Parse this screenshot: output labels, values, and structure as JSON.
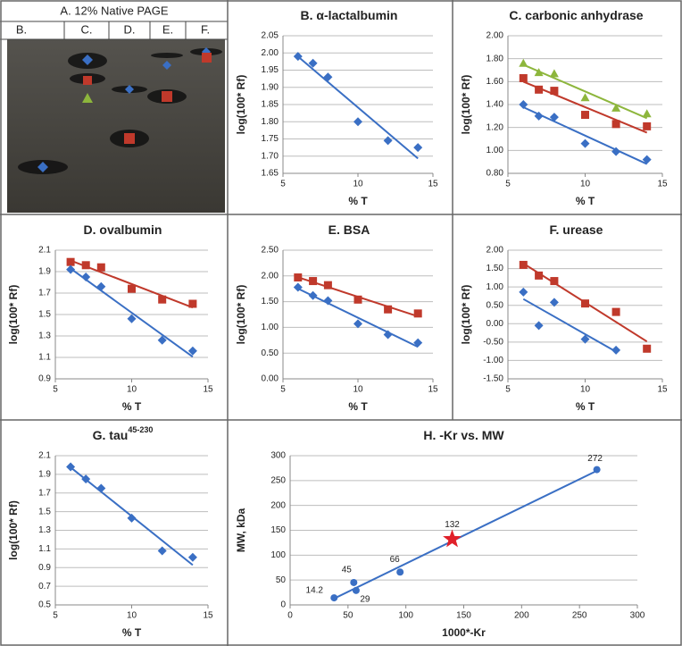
{
  "gel": {
    "title": "A.   12% Native PAGE",
    "lanes": [
      "B.",
      "C.",
      "D.",
      "E.",
      "F."
    ]
  },
  "chart_data": [
    {
      "type": "scatter",
      "title": "B. α-lactalbumin",
      "x_label": "% T",
      "y_label": "log(100* Rf)",
      "xlim": [
        5,
        15
      ],
      "xticks": [
        5,
        10,
        15
      ],
      "ylim": [
        1.65,
        2.05
      ],
      "yticks": [
        1.65,
        {
          "value": 1.7,
          "label": "1.70"
        },
        1.75,
        {
          "value": 1.8,
          "label": "1.80"
        },
        1.85,
        {
          "value": 1.9,
          "label": "1.90"
        },
        1.95,
        {
          "value": 2,
          "label": "2.00"
        },
        2.05
      ],
      "grid": true,
      "series": [
        {
          "color": "#3a6fc4",
          "marker": "diamond",
          "trendline": true,
          "x": [
            6,
            7,
            8,
            10,
            12,
            14
          ],
          "values": [
            1.99,
            1.97,
            1.93,
            1.8,
            1.745,
            1.725
          ]
        }
      ]
    },
    {
      "type": "scatter",
      "title": "C. carbonic anhydrase",
      "x_label": "% T",
      "y_label": "log(100* Rf)",
      "xlim": [
        5,
        15
      ],
      "xticks": [
        5,
        10,
        15
      ],
      "ylim": [
        0.8,
        2
      ],
      "yticks": [
        {
          "value": 0.8,
          "label": "0.80"
        },
        {
          "value": 1,
          "label": "1.00"
        },
        {
          "value": 1.2,
          "label": "1.20"
        },
        {
          "value": 1.4,
          "label": "1.40"
        },
        {
          "value": 1.6,
          "label": "1.60"
        },
        {
          "value": 1.8,
          "label": "1.80"
        },
        {
          "value": 2,
          "label": "2.00"
        }
      ],
      "grid": true,
      "series": [
        {
          "color": "#8db63c",
          "marker": "triangle",
          "trendline": true,
          "x": [
            6,
            7,
            8,
            10,
            12,
            14
          ],
          "values": [
            1.76,
            1.68,
            1.67,
            1.46,
            1.37,
            1.32
          ]
        },
        {
          "color": "#c0392b",
          "marker": "square",
          "trendline": true,
          "x": [
            6,
            7,
            8,
            10,
            12,
            14
          ],
          "values": [
            1.63,
            1.53,
            1.52,
            1.31,
            1.23,
            1.21
          ]
        },
        {
          "color": "#3a6fc4",
          "marker": "diamond",
          "trendline": true,
          "x": [
            6,
            7,
            8,
            10,
            12,
            14
          ],
          "values": [
            1.4,
            1.3,
            1.29,
            1.06,
            0.99,
            0.92
          ]
        }
      ]
    },
    {
      "type": "scatter",
      "title": "D. ovalbumin",
      "x_label": "% T",
      "y_label": "log(100* Rf)",
      "xlim": [
        5,
        15
      ],
      "xticks": [
        5,
        10,
        15
      ],
      "ylim": [
        0.9,
        2.1
      ],
      "yticks": [
        0.9,
        1.1,
        1.3,
        1.5,
        1.7,
        1.9,
        2.1
      ],
      "grid": true,
      "series": [
        {
          "color": "#c0392b",
          "marker": "square",
          "trendline": true,
          "x": [
            6,
            7,
            8,
            10,
            12,
            14
          ],
          "values": [
            1.99,
            1.96,
            1.94,
            1.74,
            1.64,
            1.6
          ]
        },
        {
          "color": "#3a6fc4",
          "marker": "diamond",
          "trendline": true,
          "x": [
            6,
            7,
            8,
            10,
            12,
            14
          ],
          "values": [
            1.92,
            1.85,
            1.76,
            1.46,
            1.26,
            1.16
          ]
        }
      ]
    },
    {
      "type": "scatter",
      "title": "E. BSA",
      "x_label": "% T",
      "y_label": "log(100* Rf)",
      "xlim": [
        5,
        15
      ],
      "xticks": [
        5,
        10,
        15
      ],
      "ylim": [
        0,
        2.5
      ],
      "yticks": [
        {
          "value": 0,
          "label": "0.00"
        },
        {
          "value": 0.5,
          "label": "0.50"
        },
        {
          "value": 1,
          "label": "1.00"
        },
        {
          "value": 1.5,
          "label": "1.50"
        },
        {
          "value": 2,
          "label": "2.00"
        },
        {
          "value": 2.5,
          "label": "2.50"
        }
      ],
      "grid": true,
      "series": [
        {
          "color": "#c0392b",
          "marker": "square",
          "trendline": true,
          "x": [
            6,
            7,
            8,
            10,
            12,
            14
          ],
          "values": [
            1.97,
            1.9,
            1.82,
            1.54,
            1.35,
            1.27
          ]
        },
        {
          "color": "#3a6fc4",
          "marker": "diamond",
          "trendline": true,
          "x": [
            6,
            7,
            8,
            10,
            12,
            14
          ],
          "values": [
            1.78,
            1.62,
            1.52,
            1.07,
            0.86,
            0.7
          ]
        }
      ]
    },
    {
      "type": "scatter",
      "title": "F. urease",
      "x_label": "% T",
      "y_label": "log(100* Rf)",
      "xlim": [
        5,
        15
      ],
      "xticks": [
        5,
        10,
        15
      ],
      "ylim": [
        -1.5,
        2
      ],
      "yticks": [
        {
          "value": -1.5,
          "label": "-1.50"
        },
        {
          "value": -1,
          "label": "-1.00"
        },
        {
          "value": -0.5,
          "label": "-0.50"
        },
        {
          "value": 0,
          "label": "0.00"
        },
        {
          "value": 0.5,
          "label": "0.50"
        },
        {
          "value": 1,
          "label": "1.00"
        },
        {
          "value": 1.5,
          "label": "1.50"
        },
        {
          "value": 2,
          "label": "2.00"
        }
      ],
      "grid": true,
      "series": [
        {
          "color": "#c0392b",
          "marker": "square",
          "trendline": true,
          "x": [
            6,
            7,
            8,
            10,
            12,
            14
          ],
          "values": [
            1.6,
            1.31,
            1.16,
            0.55,
            0.32,
            -0.68
          ]
        },
        {
          "color": "#3a6fc4",
          "marker": "diamond",
          "trendline": true,
          "x": [
            6,
            7,
            8,
            10,
            12
          ],
          "values": [
            0.86,
            -0.05,
            0.58,
            -0.42,
            -0.72
          ]
        }
      ]
    },
    {
      "type": "scatter",
      "title": "G. tau",
      "title_superscript": "45-230",
      "x_label": "% T",
      "y_label": "log(100* Rf)",
      "xlim": [
        5,
        15
      ],
      "xticks": [
        5,
        10,
        15
      ],
      "ylim": [
        0.5,
        2.1
      ],
      "yticks": [
        0.5,
        0.7,
        0.9,
        1.1,
        1.3,
        1.5,
        1.7,
        1.9,
        2.1
      ],
      "grid": true,
      "series": [
        {
          "color": "#3a6fc4",
          "marker": "diamond",
          "trendline": true,
          "x": [
            6,
            7,
            8,
            10,
            12,
            14
          ],
          "values": [
            1.98,
            1.85,
            1.75,
            1.43,
            1.08,
            1.01
          ]
        }
      ]
    },
    {
      "type": "scatter",
      "title": "H. -Kr vs. MW",
      "x_label": "1000*-Kr",
      "y_label": "MW, kDa",
      "xlim": [
        0,
        300
      ],
      "xticks": [
        0,
        50,
        100,
        150,
        200,
        250,
        300
      ],
      "ylim": [
        0,
        300
      ],
      "yticks": [
        0,
        50,
        100,
        150,
        200,
        250,
        300
      ],
      "grid": true,
      "value_labels": true,
      "series": [
        {
          "color": "#3a6fc4",
          "marker": "circle",
          "trendline": true,
          "x": [
            38,
            55,
            57,
            95,
            265
          ],
          "values": [
            14.2,
            45,
            29,
            66,
            272
          ]
        },
        {
          "color": "#e0202a",
          "marker": "star",
          "trendline": false,
          "x": [
            140
          ],
          "values": [
            132
          ]
        }
      ]
    }
  ]
}
